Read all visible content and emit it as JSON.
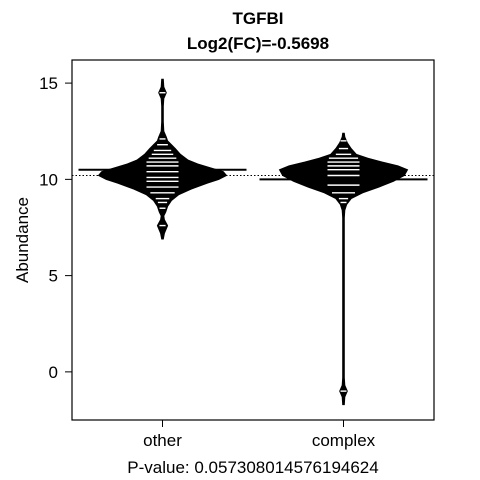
{
  "chart_data": {
    "type": "beanplot",
    "title": "TGFBI",
    "subtitle": "Log2(FC)=-0.5698",
    "xlabel": "",
    "ylabel": "Abundance",
    "footer": "P-value: 0.057308014576194624",
    "ylim": [
      -2.5,
      16.2
    ],
    "yticks": [
      0,
      5,
      10,
      15
    ],
    "ytick_labels": [
      "0",
      "5",
      "10",
      "15"
    ],
    "categories": [
      "other",
      "complex"
    ],
    "overall_mean": 10.2,
    "beans": [
      {
        "name": "other",
        "mean": 10.5,
        "min": 7.0,
        "max": 15.2,
        "density": [
          [
            6.9,
            0
          ],
          [
            7.2,
            0.03
          ],
          [
            7.6,
            0.08
          ],
          [
            7.9,
            0.03
          ],
          [
            8.1,
            0.02
          ],
          [
            8.3,
            0.05
          ],
          [
            8.6,
            0.08
          ],
          [
            8.9,
            0.14
          ],
          [
            9.2,
            0.25
          ],
          [
            9.5,
            0.45
          ],
          [
            9.8,
            0.7
          ],
          [
            10.0,
            0.88
          ],
          [
            10.2,
            1.0
          ],
          [
            10.4,
            0.95
          ],
          [
            10.6,
            0.75
          ],
          [
            10.8,
            0.55
          ],
          [
            11.0,
            0.4
          ],
          [
            11.3,
            0.28
          ],
          [
            11.6,
            0.2
          ],
          [
            11.8,
            0.14
          ],
          [
            12.0,
            0.08
          ],
          [
            12.2,
            0.06
          ],
          [
            12.5,
            0.02
          ],
          [
            13.0,
            0.005
          ],
          [
            13.8,
            0.005
          ],
          [
            14.2,
            0.02
          ],
          [
            14.5,
            0.06
          ],
          [
            14.8,
            0.02
          ],
          [
            15.2,
            0
          ]
        ],
        "points": [
          7.6,
          8.5,
          8.8,
          9.0,
          9.3,
          9.6,
          9.9,
          10.1,
          10.4,
          10.7,
          10.9,
          11.1,
          11.3,
          11.5,
          11.8,
          12.1,
          14.5
        ]
      },
      {
        "name": "complex",
        "mean": 10.0,
        "min": -1.7,
        "max": 12.4,
        "density": [
          [
            -1.7,
            0
          ],
          [
            -1.3,
            0.02
          ],
          [
            -1.0,
            0.06
          ],
          [
            -0.7,
            0.02
          ],
          [
            -0.3,
            0.004
          ],
          [
            1.0,
            0.004
          ],
          [
            4.0,
            0.004
          ],
          [
            7.0,
            0.004
          ],
          [
            8.0,
            0.008
          ],
          [
            8.4,
            0.02
          ],
          [
            8.7,
            0.05
          ],
          [
            9.0,
            0.12
          ],
          [
            9.3,
            0.3
          ],
          [
            9.6,
            0.55
          ],
          [
            9.9,
            0.78
          ],
          [
            10.2,
            0.95
          ],
          [
            10.5,
            1.0
          ],
          [
            10.7,
            0.85
          ],
          [
            10.9,
            0.6
          ],
          [
            11.1,
            0.38
          ],
          [
            11.3,
            0.2
          ],
          [
            11.6,
            0.12
          ],
          [
            11.9,
            0.06
          ],
          [
            12.2,
            0.02
          ],
          [
            12.4,
            0
          ]
        ],
        "points": [
          -1.0,
          8.8,
          9.0,
          9.3,
          9.7,
          10.0,
          10.2,
          10.5,
          10.7,
          10.9,
          11.1,
          11.3,
          11.6,
          12.0
        ]
      }
    ]
  }
}
